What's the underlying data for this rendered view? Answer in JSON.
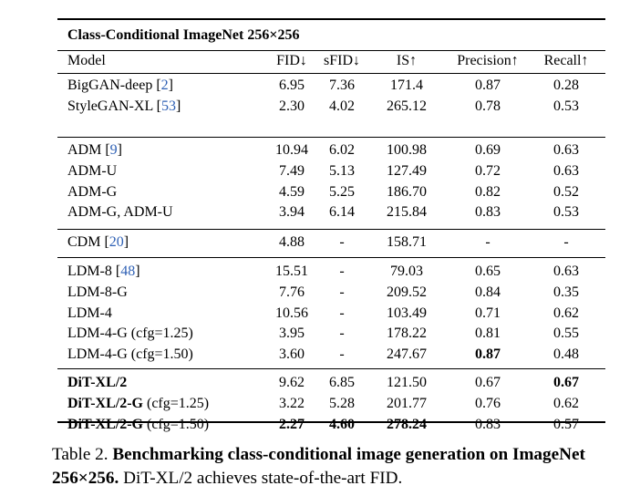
{
  "table": {
    "title": "Class-Conditional ImageNet 256×256",
    "headers": [
      "Model",
      "FID↓",
      "sFID↓",
      "IS↑",
      "Precision↑",
      "Recall↑"
    ],
    "groups": [
      [
        {
          "name": "BigGAN-deep",
          "ref": "2",
          "suffix": "",
          "values": [
            "6.95",
            "7.36",
            "171.4",
            "0.87",
            "0.28"
          ]
        },
        {
          "name": "StyleGAN-XL",
          "ref": "53",
          "suffix": "",
          "values": [
            "2.30",
            "4.02",
            "265.12",
            "0.78",
            "0.53"
          ]
        }
      ],
      [
        {
          "name": "ADM",
          "ref": "9",
          "suffix": "",
          "values": [
            "10.94",
            "6.02",
            "100.98",
            "0.69",
            "0.63"
          ]
        },
        {
          "name": "ADM-U",
          "ref": "",
          "suffix": "",
          "values": [
            "7.49",
            "5.13",
            "127.49",
            "0.72",
            "0.63"
          ]
        },
        {
          "name": "ADM-G",
          "ref": "",
          "suffix": "",
          "values": [
            "4.59",
            "5.25",
            "186.70",
            "0.82",
            "0.52"
          ]
        },
        {
          "name": "ADM-G, ADM-U",
          "ref": "",
          "suffix": "",
          "values": [
            "3.94",
            "6.14",
            "215.84",
            "0.83",
            "0.53"
          ]
        }
      ],
      [
        {
          "name": "CDM",
          "ref": "20",
          "suffix": "",
          "values": [
            "4.88",
            "-",
            "158.71",
            "-",
            "-"
          ]
        }
      ],
      [
        {
          "name": "LDM-8",
          "ref": "48",
          "suffix": "",
          "values": [
            "15.51",
            "-",
            "79.03",
            "0.65",
            "0.63"
          ]
        },
        {
          "name": "LDM-8-G",
          "ref": "",
          "suffix": "",
          "values": [
            "7.76",
            "-",
            "209.52",
            "0.84",
            "0.35"
          ]
        },
        {
          "name": "LDM-4",
          "ref": "",
          "suffix": "",
          "values": [
            "10.56",
            "-",
            "103.49",
            "0.71",
            "0.62"
          ]
        },
        {
          "name": "LDM-4-G",
          "ref": "",
          "suffix": "(cfg=1.25)",
          "values": [
            "3.95",
            "-",
            "178.22",
            "0.81",
            "0.55"
          ]
        },
        {
          "name": "LDM-4-G",
          "ref": "",
          "suffix": "(cfg=1.50)",
          "values": [
            "3.60",
            "-",
            "247.67",
            "0.87",
            "0.48"
          ],
          "bold": [
            false,
            false,
            false,
            true,
            false
          ]
        }
      ],
      [
        {
          "name": "DiT-XL/2",
          "ref": "",
          "suffix": "",
          "name_bold": true,
          "values": [
            "9.62",
            "6.85",
            "121.50",
            "0.67",
            "0.67"
          ],
          "bold": [
            false,
            false,
            false,
            false,
            true
          ]
        },
        {
          "name": "DiT-XL/2-G",
          "ref": "",
          "suffix": "(cfg=1.25)",
          "name_bold": true,
          "values": [
            "3.22",
            "5.28",
            "201.77",
            "0.76",
            "0.62"
          ]
        },
        {
          "name": "DiT-XL/2-G",
          "ref": "",
          "suffix": "(cfg=1.50)",
          "name_bold": true,
          "values": [
            "2.27",
            "4.60",
            "278.24",
            "0.83",
            "0.57"
          ],
          "bold": [
            true,
            true,
            true,
            false,
            false
          ]
        }
      ]
    ]
  },
  "caption": {
    "label": "Table 2.",
    "bold_text": "Benchmarking class-conditional image generation on ImageNet 256×256.",
    "text": "DiT-XL/2 achieves state-of-the-art FID."
  }
}
